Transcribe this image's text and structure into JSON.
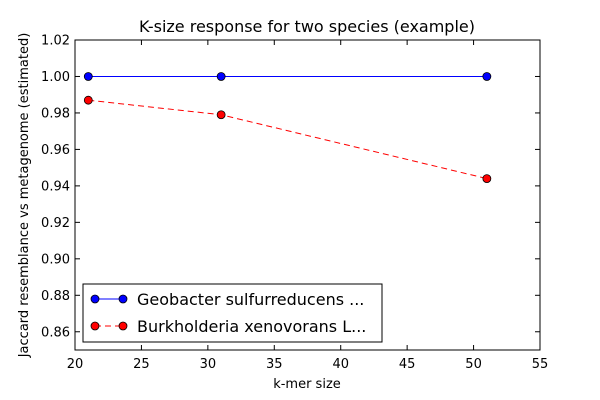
{
  "chart_data": {
    "type": "line",
    "title": "K-size response for two species (example)",
    "xlabel": "k-mer size",
    "ylabel": "Jaccard resemblance vs metagenome (estimated)",
    "xlim": [
      20,
      55
    ],
    "ylim": [
      0.85,
      1.02
    ],
    "xticks": [
      "20",
      "25",
      "30",
      "35",
      "40",
      "45",
      "50",
      "55"
    ],
    "yticks": [
      "0.86",
      "0.88",
      "0.90",
      "0.92",
      "0.94",
      "0.96",
      "0.98",
      "1.00",
      "1.02"
    ],
    "x": [
      21,
      31,
      51
    ],
    "series": [
      {
        "name": "Geobacter sulfurreducens ...",
        "values": [
          1.0,
          1.0,
          1.0
        ],
        "color": "#0000ff",
        "line_style": "solid"
      },
      {
        "name": "Burkholderia xenovorans L...",
        "values": [
          0.987,
          0.979,
          0.944
        ],
        "color": "#ff0000",
        "line_style": "dashed"
      }
    ],
    "grid": false,
    "legend_position": "lower-left"
  }
}
